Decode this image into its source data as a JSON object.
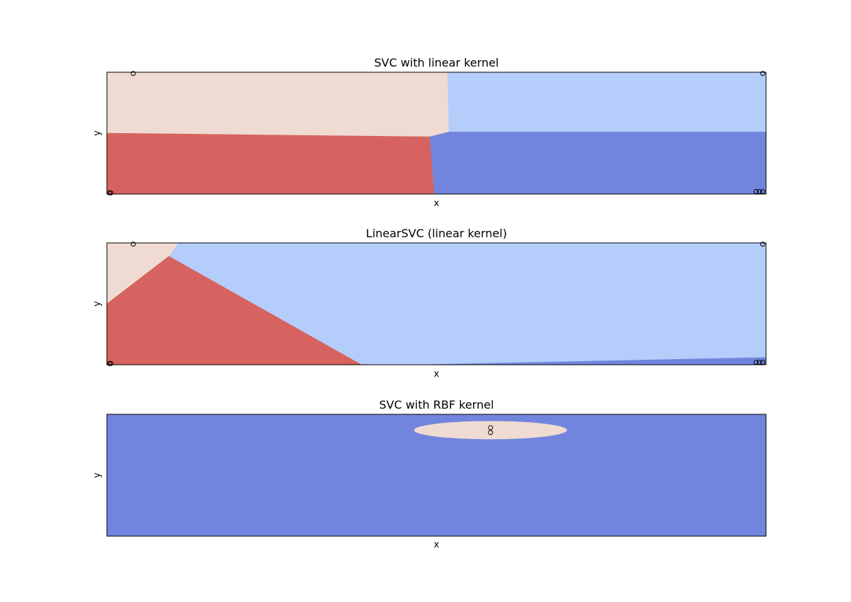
{
  "chart_data": [
    {
      "type": "scatter",
      "title": "SVC with linear kernel",
      "xlabel": "x",
      "ylabel": "y",
      "xticks": "none",
      "yticks": "none",
      "region_colors": {
        "class_0": "#d6635f",
        "class_1": "#efdbd1",
        "class_2": "#b5cdfb",
        "class_3": "#7285de"
      },
      "regions": [
        {
          "class": "class_1",
          "polygon": [
            [
              0.0,
              1.0
            ],
            [
              0.517,
              1.0
            ],
            [
              0.519,
              0.51
            ],
            [
              0.49,
              0.47
            ],
            [
              0.0,
              0.5
            ]
          ]
        },
        {
          "class": "class_0",
          "polygon": [
            [
              0.0,
              0.5
            ],
            [
              0.49,
              0.47
            ],
            [
              0.497,
              0.0
            ],
            [
              0.0,
              0.0
            ]
          ]
        },
        {
          "class": "class_2",
          "polygon": [
            [
              0.517,
              1.0
            ],
            [
              1.0,
              1.0
            ],
            [
              1.0,
              0.51
            ],
            [
              0.519,
              0.51
            ]
          ]
        },
        {
          "class": "class_3",
          "polygon": [
            [
              0.49,
              0.47
            ],
            [
              0.519,
              0.51
            ],
            [
              1.0,
              0.51
            ],
            [
              1.0,
              0.0
            ],
            [
              0.497,
              0.0
            ]
          ]
        }
      ],
      "points": [
        {
          "x": 0.04,
          "y": 0.99
        },
        {
          "x": 0.004,
          "y": 0.01
        },
        {
          "x": 0.006,
          "y": 0.01
        },
        {
          "x": 0.995,
          "y": 0.99
        },
        {
          "x": 0.985,
          "y": 0.02
        },
        {
          "x": 0.99,
          "y": 0.02
        },
        {
          "x": 0.995,
          "y": 0.02
        }
      ]
    },
    {
      "type": "scatter",
      "title": "LinearSVC (linear kernel)",
      "xlabel": "x",
      "ylabel": "y",
      "xticks": "none",
      "yticks": "none",
      "region_colors": {
        "class_0": "#d6635f",
        "class_1": "#efdbd1",
        "class_2": "#b5cdfb",
        "class_3": "#7285de"
      },
      "regions": [
        {
          "class": "class_2",
          "polygon": [
            [
              0.0,
              0.0
            ],
            [
              1.0,
              0.0
            ],
            [
              1.0,
              1.0
            ],
            [
              0.0,
              1.0
            ]
          ]
        },
        {
          "class": "class_1",
          "polygon": [
            [
              0.0,
              1.0
            ],
            [
              0.108,
              1.0
            ],
            [
              0.094,
              0.89
            ],
            [
              0.0,
              0.5
            ]
          ]
        },
        {
          "class": "class_0",
          "polygon": [
            [
              0.0,
              0.5
            ],
            [
              0.094,
              0.89
            ],
            [
              0.386,
              0.0
            ],
            [
              0.0,
              0.0
            ]
          ]
        },
        {
          "class": "class_3",
          "polygon": [
            [
              0.48,
              0.0
            ],
            [
              1.0,
              0.06
            ],
            [
              1.0,
              0.0
            ]
          ]
        }
      ],
      "points": [
        {
          "x": 0.04,
          "y": 0.99
        },
        {
          "x": 0.004,
          "y": 0.01
        },
        {
          "x": 0.006,
          "y": 0.01
        },
        {
          "x": 0.995,
          "y": 0.99
        },
        {
          "x": 0.985,
          "y": 0.02
        },
        {
          "x": 0.99,
          "y": 0.02
        },
        {
          "x": 0.995,
          "y": 0.02
        }
      ]
    },
    {
      "type": "scatter",
      "title": "SVC with RBF kernel",
      "xlabel": "x",
      "ylabel": "y",
      "xticks": "none",
      "yticks": "none",
      "region_colors": {
        "class_1": "#efdbd1",
        "class_3": "#7285de"
      },
      "regions": [
        {
          "class": "class_3",
          "polygon": [
            [
              0.0,
              0.0
            ],
            [
              1.0,
              0.0
            ],
            [
              1.0,
              1.0
            ],
            [
              0.0,
              1.0
            ]
          ]
        }
      ],
      "ellipses": [
        {
          "class": "class_1",
          "cx": 0.582,
          "cy": 0.87,
          "rx": 0.116,
          "ry": 0.075
        }
      ],
      "points": [
        {
          "x": 0.582,
          "y": 0.89
        },
        {
          "x": 0.582,
          "y": 0.85
        }
      ]
    }
  ]
}
